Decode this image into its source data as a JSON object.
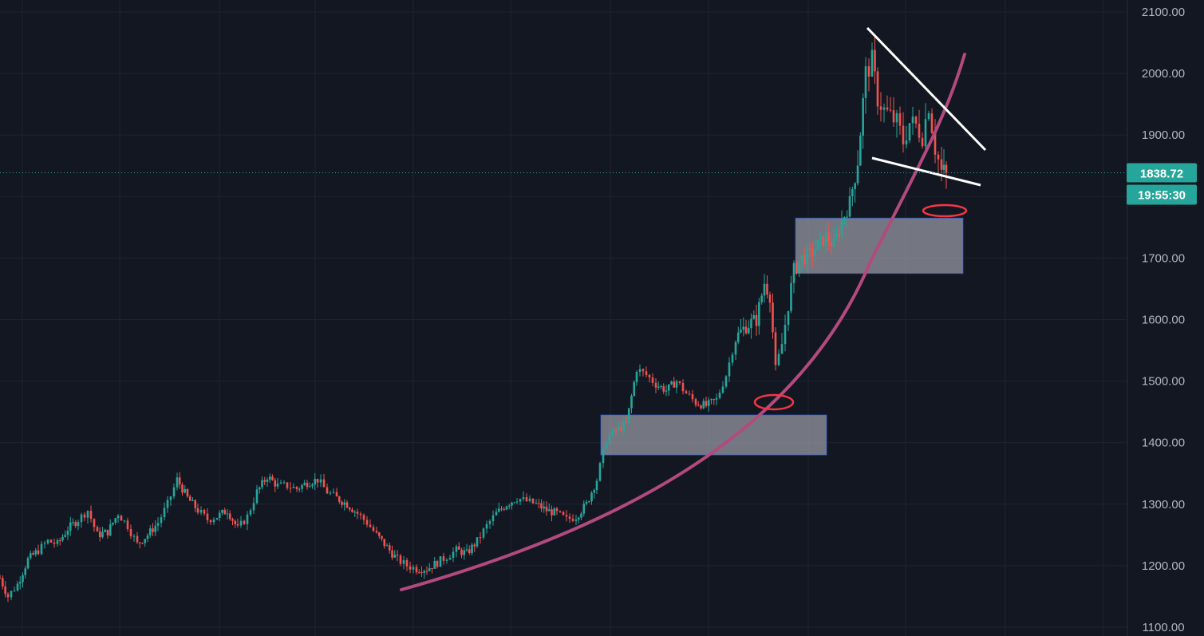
{
  "chart_data": {
    "type": "candlestick",
    "instrument_hint": "price chart with drawn annotations",
    "last_price": "1838.72",
    "countdown": "19:55:30",
    "ylim": [
      1100,
      2100
    ],
    "y_ticks": [
      "2100.00",
      "2000.00",
      "1900.00",
      "1700.00",
      "1600.00",
      "1500.00",
      "1400.00",
      "1300.00",
      "1200.00",
      "1100.00"
    ],
    "grid": true,
    "colors": {
      "background": "#131722",
      "up": "#26a69a",
      "down": "#ef5350",
      "grid": "#1f2330",
      "axis_text": "#b2b5be",
      "price_label_bg": "#26a69a",
      "curve": "#b24a7e",
      "trendline": "#ffffff",
      "zone_fill": "#9598a1",
      "zone_border": "#2962ff",
      "circle": "#f23645"
    },
    "candle_anchors": [
      [
        0,
        1180
      ],
      [
        10,
        1150
      ],
      [
        22,
        1170
      ],
      [
        35,
        1210
      ],
      [
        48,
        1225
      ],
      [
        60,
        1240
      ],
      [
        72,
        1235
      ],
      [
        85,
        1260
      ],
      [
        98,
        1275
      ],
      [
        110,
        1290
      ],
      [
        122,
        1250
      ],
      [
        135,
        1255
      ],
      [
        148,
        1285
      ],
      [
        160,
        1265
      ],
      [
        172,
        1235
      ],
      [
        185,
        1250
      ],
      [
        198,
        1270
      ],
      [
        210,
        1300
      ],
      [
        222,
        1340
      ],
      [
        235,
        1310
      ],
      [
        248,
        1290
      ],
      [
        260,
        1275
      ],
      [
        272,
        1280
      ],
      [
        285,
        1290
      ],
      [
        298,
        1260
      ],
      [
        310,
        1280
      ],
      [
        322,
        1320
      ],
      [
        335,
        1345
      ],
      [
        348,
        1330
      ],
      [
        360,
        1330
      ],
      [
        372,
        1325
      ],
      [
        385,
        1335
      ],
      [
        398,
        1340
      ],
      [
        410,
        1320
      ],
      [
        422,
        1310
      ],
      [
        435,
        1300
      ],
      [
        448,
        1285
      ],
      [
        460,
        1270
      ],
      [
        472,
        1250
      ],
      [
        485,
        1230
      ],
      [
        498,
        1210
      ],
      [
        510,
        1200
      ],
      [
        522,
        1195
      ],
      [
        535,
        1195
      ],
      [
        548,
        1205
      ],
      [
        560,
        1215
      ],
      [
        572,
        1225
      ],
      [
        585,
        1220
      ],
      [
        598,
        1240
      ],
      [
        610,
        1265
      ],
      [
        622,
        1285
      ],
      [
        635,
        1300
      ],
      [
        648,
        1310
      ],
      [
        660,
        1305
      ],
      [
        672,
        1300
      ],
      [
        685,
        1290
      ],
      [
        698,
        1285
      ],
      [
        710,
        1275
      ],
      [
        722,
        1280
      ],
      [
        735,
        1300
      ],
      [
        748,
        1340
      ],
      [
        760,
        1405
      ],
      [
        772,
        1420
      ],
      [
        785,
        1430
      ],
      [
        798,
        1520
      ],
      [
        810,
        1510
      ],
      [
        822,
        1495
      ],
      [
        835,
        1485
      ],
      [
        848,
        1500
      ],
      [
        860,
        1480
      ],
      [
        872,
        1465
      ],
      [
        885,
        1460
      ],
      [
        898,
        1470
      ],
      [
        910,
        1510
      ],
      [
        922,
        1570
      ],
      [
        935,
        1590
      ],
      [
        948,
        1600
      ],
      [
        958,
        1660
      ],
      [
        965,
        1640
      ],
      [
        972,
        1520
      ],
      [
        980,
        1560
      ],
      [
        988,
        1625
      ],
      [
        995,
        1680
      ],
      [
        1005,
        1700
      ],
      [
        1015,
        1705
      ],
      [
        1025,
        1720
      ],
      [
        1035,
        1735
      ],
      [
        1045,
        1720
      ],
      [
        1055,
        1760
      ],
      [
        1065,
        1790
      ],
      [
        1075,
        1860
      ],
      [
        1085,
        2000
      ],
      [
        1093,
        2020
      ],
      [
        1100,
        1960
      ],
      [
        1108,
        1940
      ],
      [
        1116,
        1930
      ],
      [
        1124,
        1920
      ],
      [
        1132,
        1890
      ],
      [
        1140,
        1920
      ],
      [
        1148,
        1915
      ],
      [
        1156,
        1900
      ],
      [
        1164,
        1950
      ],
      [
        1172,
        1880
      ],
      [
        1180,
        1840
      ],
      [
        1186,
        1838
      ]
    ]
  }
}
